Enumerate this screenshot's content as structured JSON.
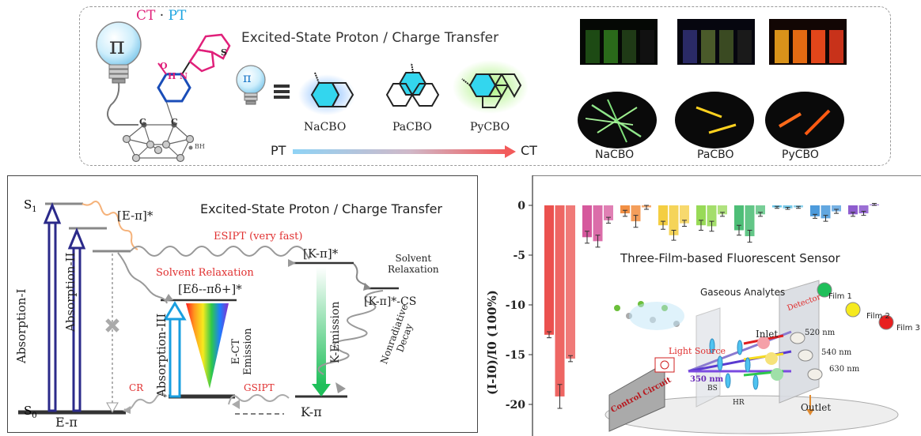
{
  "top": {
    "title": "Excited-State Proton / Charge Transfer",
    "pi": "π",
    "ct_label": "CT",
    "dot": "·",
    "pt_label": "PT",
    "c_label": "C",
    "bh_label": "BH",
    "o_label": "O",
    "h_label": "H",
    "n_label": "N",
    "s_label": "S",
    "molecules": [
      "NaCBO",
      "PaCBO",
      "PyCBO"
    ],
    "pt_end": "PT",
    "ct_end": "CT",
    "photo_labels": [
      "NaCBO",
      "PaCBO",
      "PyCBO"
    ]
  },
  "left": {
    "title": "Excited-State Proton / Charge Transfer",
    "s1": "S",
    "s1_sub": "1",
    "s0": "S",
    "s0_sub": "0",
    "epi_star": "[E-π]*",
    "esipt": "ESIPT (very fast)",
    "kpi_star": "[K-π]*",
    "solvent_relax_left": "Solvent Relaxation",
    "solvent_relax_right_1": "Solvent",
    "solvent_relax_right_2": "Relaxation",
    "ect_state": "[Eδ--πδ+]*",
    "kpi_cs": "[K-π]*-CS",
    "abs1": "Absorption-I",
    "abs2": "Absorption-II",
    "abs3": "Absorption-III",
    "ect_em_1": "E-CT",
    "ect_em_2": "Emission",
    "k_em": "K-Emission",
    "nonrad_1": "Nonradiative",
    "nonrad_2": "Decay",
    "cr": "CR",
    "gsipt": "GSIPT",
    "epi": "E-π",
    "kpi": "K-π"
  },
  "right": {
    "ylabel": "(I-I0)/I0 (100%)",
    "sensor_title": "Three-Film-based Fluorescent Sensor",
    "gaseous": "Gaseous Analytes",
    "detector": "Detector",
    "films": [
      "Film 1",
      "Film 2",
      "Film 3"
    ],
    "wavelengths": [
      "520 nm",
      "540 nm",
      "630 nm"
    ],
    "inlet": "Inlet",
    "outlet": "Outlet",
    "light_source": "Light Source",
    "nm350": "350 nm",
    "bs": "BS",
    "hr": "HR",
    "control": "Control Circuit"
  },
  "chart_data": {
    "type": "bar",
    "ylim": [
      -21,
      1.2
    ],
    "yticks": [
      0,
      -5,
      -10,
      -15,
      -20
    ],
    "grid": false,
    "groups": [
      {
        "color": "#e8332f",
        "values": [
          -13.0,
          -19.2,
          -15.4
        ],
        "errors": [
          0.3,
          1.2,
          0.3
        ]
      },
      {
        "color": "#cf3c8c",
        "values": [
          -3.2,
          -3.6,
          -1.5
        ],
        "errors": [
          0.6,
          0.6,
          0.3
        ]
      },
      {
        "color": "#f07d24",
        "values": [
          -0.8,
          -1.6,
          -0.2
        ],
        "errors": [
          0.3,
          0.6,
          0.2
        ]
      },
      {
        "color": "#f2c521",
        "values": [
          -2.0,
          -3.0,
          -1.8
        ],
        "errors": [
          0.4,
          0.5,
          0.3
        ]
      },
      {
        "color": "#86d33a",
        "values": [
          -2.0,
          -2.1,
          -0.9
        ],
        "errors": [
          0.5,
          0.5,
          0.2
        ]
      },
      {
        "color": "#2fb35f",
        "values": [
          -2.5,
          -3.1,
          -0.9
        ],
        "errors": [
          0.5,
          0.6,
          0.2
        ]
      },
      {
        "color": "#4ab8e3",
        "values": [
          -0.2,
          -0.3,
          -0.2
        ],
        "errors": [
          0.1,
          0.1,
          0.1
        ]
      },
      {
        "color": "#2e89d6",
        "values": [
          -1.1,
          -1.3,
          -0.6
        ],
        "errors": [
          0.2,
          0.3,
          0.2
        ]
      },
      {
        "color": "#7a3fc6",
        "values": [
          -0.9,
          -0.8,
          0.1
        ],
        "errors": [
          0.2,
          0.2,
          0.1
        ]
      }
    ]
  },
  "colors": {
    "absorption": "#2b2a8a",
    "red_text": "#e03030",
    "pink": "#e0207a",
    "cyan": "#1aa3e0",
    "k_emission": "#2fbf6a"
  }
}
